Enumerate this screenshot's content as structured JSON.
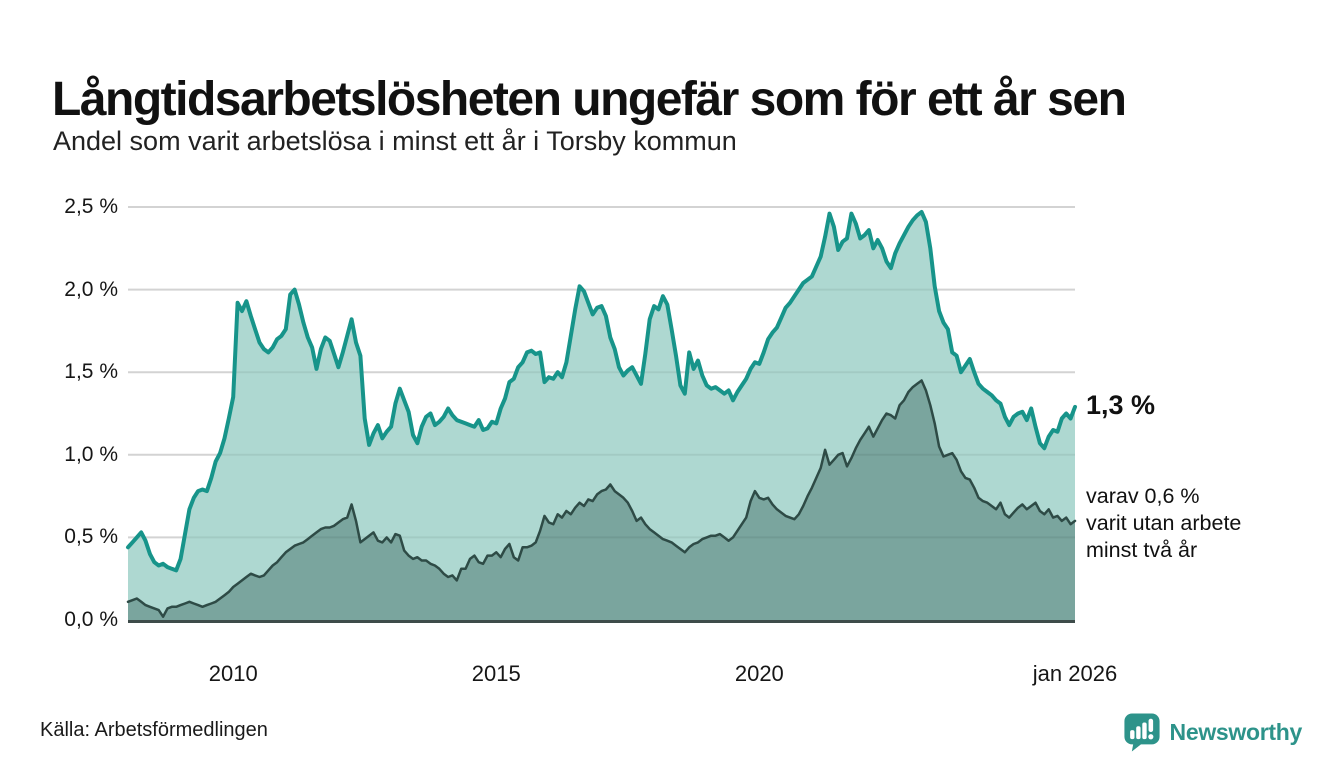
{
  "header": {
    "title": "Långtidsarbetslösheten ungefär som för ett år sen",
    "subtitle": "Andel som varit arbetslösa i minst ett år i Torsby kommun"
  },
  "chart_data": {
    "type": "area",
    "title": "Långtidsarbetslösheten ungefär som för ett år sen",
    "subtitle": "Andel som varit arbetslösa i minst ett år i Torsby kommun",
    "unit": "%",
    "grid": true,
    "x_axis": {
      "range": [
        2008.0,
        2026.0
      ],
      "step": 0.0833333,
      "ticks": [
        {
          "t": 2010,
          "label": "2010"
        },
        {
          "t": 2015,
          "label": "2015"
        },
        {
          "t": 2020,
          "label": "2020"
        },
        {
          "t": 2026,
          "label": "jan 2026"
        }
      ]
    },
    "y_axis": {
      "range": [
        0,
        2.5
      ],
      "ticks": [
        {
          "v": 0.0,
          "label": "0,0 %"
        },
        {
          "v": 0.5,
          "label": "0,5 %"
        },
        {
          "v": 1.0,
          "label": "1,0 %"
        },
        {
          "v": 1.5,
          "label": "1,5 %"
        },
        {
          "v": 2.0,
          "label": "2,0 %"
        },
        {
          "v": 2.5,
          "label": "2,5 %"
        }
      ]
    },
    "style": {
      "gridline_color": "#e1e1e1",
      "axis_color": "#3e4c4a",
      "background": "#ffffff"
    },
    "series": [
      {
        "name": "Andel arbetslösa minst ett år",
        "color": "#17948a",
        "fill": "#abd7d0",
        "line_width": 4,
        "end_value": 1.3,
        "end_label": "1,3 %",
        "values": [
          0.44,
          0.47,
          0.5,
          0.53,
          0.48,
          0.4,
          0.35,
          0.33,
          0.34,
          0.32,
          0.31,
          0.3,
          0.37,
          0.52,
          0.67,
          0.74,
          0.78,
          0.79,
          0.78,
          0.86,
          0.96,
          1.01,
          1.1,
          1.22,
          1.35,
          1.92,
          1.87,
          1.93,
          1.84,
          1.76,
          1.68,
          1.64,
          1.62,
          1.65,
          1.7,
          1.72,
          1.76,
          1.97,
          2.0,
          1.91,
          1.8,
          1.71,
          1.65,
          1.52,
          1.64,
          1.71,
          1.69,
          1.61,
          1.53,
          1.62,
          1.72,
          1.82,
          1.68,
          1.6,
          1.22,
          1.06,
          1.13,
          1.18,
          1.1,
          1.14,
          1.17,
          1.31,
          1.4,
          1.33,
          1.26,
          1.12,
          1.07,
          1.17,
          1.23,
          1.25,
          1.18,
          1.2,
          1.23,
          1.28,
          1.24,
          1.21,
          1.2,
          1.19,
          1.18,
          1.17,
          1.21,
          1.15,
          1.16,
          1.2,
          1.19,
          1.28,
          1.34,
          1.44,
          1.46,
          1.53,
          1.56,
          1.62,
          1.63,
          1.61,
          1.62,
          1.44,
          1.47,
          1.46,
          1.5,
          1.47,
          1.56,
          1.72,
          1.88,
          2.02,
          1.99,
          1.92,
          1.85,
          1.89,
          1.9,
          1.84,
          1.71,
          1.64,
          1.53,
          1.48,
          1.51,
          1.53,
          1.48,
          1.43,
          1.61,
          1.82,
          1.9,
          1.88,
          1.96,
          1.91,
          1.76,
          1.6,
          1.42,
          1.37,
          1.62,
          1.52,
          1.57,
          1.48,
          1.42,
          1.4,
          1.41,
          1.39,
          1.37,
          1.39,
          1.33,
          1.38,
          1.42,
          1.46,
          1.52,
          1.56,
          1.55,
          1.62,
          1.7,
          1.74,
          1.77,
          1.83,
          1.89,
          1.92,
          1.96,
          2.0,
          2.04,
          2.06,
          2.08,
          2.14,
          2.2,
          2.32,
          2.46,
          2.38,
          2.24,
          2.29,
          2.31,
          2.46,
          2.4,
          2.31,
          2.33,
          2.36,
          2.25,
          2.3,
          2.25,
          2.17,
          2.13,
          2.22,
          2.28,
          2.33,
          2.38,
          2.42,
          2.45,
          2.47,
          2.41,
          2.25,
          2.02,
          1.87,
          1.8,
          1.76,
          1.62,
          1.6,
          1.5,
          1.54,
          1.58,
          1.5,
          1.43,
          1.4,
          1.38,
          1.36,
          1.33,
          1.31,
          1.23,
          1.18,
          1.23,
          1.25,
          1.26,
          1.21,
          1.28,
          1.17,
          1.07,
          1.04,
          1.11,
          1.15,
          1.14,
          1.22,
          1.25,
          1.22,
          1.29
        ]
      },
      {
        "name": "varav utan arbete minst två år",
        "color": "#2e4b46",
        "fill": "#76a29b",
        "line_width": 2.5,
        "end_value": 0.6,
        "end_label": "varav 0,6 % varit utan arbete minst två år",
        "values": [
          0.11,
          0.12,
          0.13,
          0.11,
          0.09,
          0.08,
          0.07,
          0.06,
          0.02,
          0.07,
          0.08,
          0.08,
          0.09,
          0.1,
          0.11,
          0.1,
          0.09,
          0.08,
          0.09,
          0.1,
          0.11,
          0.13,
          0.15,
          0.17,
          0.2,
          0.22,
          0.24,
          0.26,
          0.28,
          0.27,
          0.26,
          0.27,
          0.3,
          0.33,
          0.35,
          0.38,
          0.41,
          0.43,
          0.45,
          0.46,
          0.47,
          0.49,
          0.51,
          0.53,
          0.55,
          0.56,
          0.56,
          0.57,
          0.59,
          0.61,
          0.62,
          0.7,
          0.6,
          0.47,
          0.49,
          0.51,
          0.53,
          0.48,
          0.47,
          0.5,
          0.47,
          0.52,
          0.51,
          0.42,
          0.39,
          0.37,
          0.38,
          0.36,
          0.36,
          0.34,
          0.33,
          0.31,
          0.28,
          0.26,
          0.27,
          0.24,
          0.31,
          0.31,
          0.37,
          0.39,
          0.35,
          0.34,
          0.39,
          0.39,
          0.41,
          0.38,
          0.43,
          0.46,
          0.38,
          0.36,
          0.44,
          0.44,
          0.45,
          0.47,
          0.54,
          0.63,
          0.59,
          0.58,
          0.64,
          0.62,
          0.66,
          0.64,
          0.68,
          0.71,
          0.69,
          0.73,
          0.72,
          0.76,
          0.78,
          0.79,
          0.82,
          0.78,
          0.76,
          0.74,
          0.71,
          0.66,
          0.6,
          0.62,
          0.58,
          0.55,
          0.53,
          0.51,
          0.49,
          0.48,
          0.47,
          0.45,
          0.43,
          0.41,
          0.44,
          0.46,
          0.47,
          0.49,
          0.5,
          0.51,
          0.51,
          0.52,
          0.5,
          0.48,
          0.5,
          0.54,
          0.58,
          0.62,
          0.72,
          0.78,
          0.74,
          0.73,
          0.74,
          0.7,
          0.67,
          0.65,
          0.63,
          0.62,
          0.61,
          0.64,
          0.69,
          0.75,
          0.8,
          0.86,
          0.92,
          1.03,
          0.94,
          0.97,
          1.0,
          1.01,
          0.93,
          0.98,
          1.04,
          1.09,
          1.13,
          1.17,
          1.11,
          1.16,
          1.21,
          1.25,
          1.24,
          1.22,
          1.3,
          1.33,
          1.38,
          1.41,
          1.43,
          1.45,
          1.39,
          1.3,
          1.19,
          1.05,
          0.99,
          1.0,
          1.01,
          0.97,
          0.9,
          0.86,
          0.85,
          0.8,
          0.74,
          0.72,
          0.71,
          0.69,
          0.67,
          0.71,
          0.64,
          0.62,
          0.65,
          0.68,
          0.7,
          0.67,
          0.69,
          0.71,
          0.66,
          0.64,
          0.67,
          0.62,
          0.63,
          0.6,
          0.62,
          0.58,
          0.6
        ]
      }
    ]
  },
  "annotations": {
    "latest_label": "1,3 %",
    "line1": "varav 0,6 %",
    "line2": "varit utan arbete",
    "line3": "minst två år"
  },
  "footer": {
    "source": "Källa: Arbetsförmedlingen",
    "brand": "Newsworthy",
    "brand_color": "#2d938a"
  }
}
